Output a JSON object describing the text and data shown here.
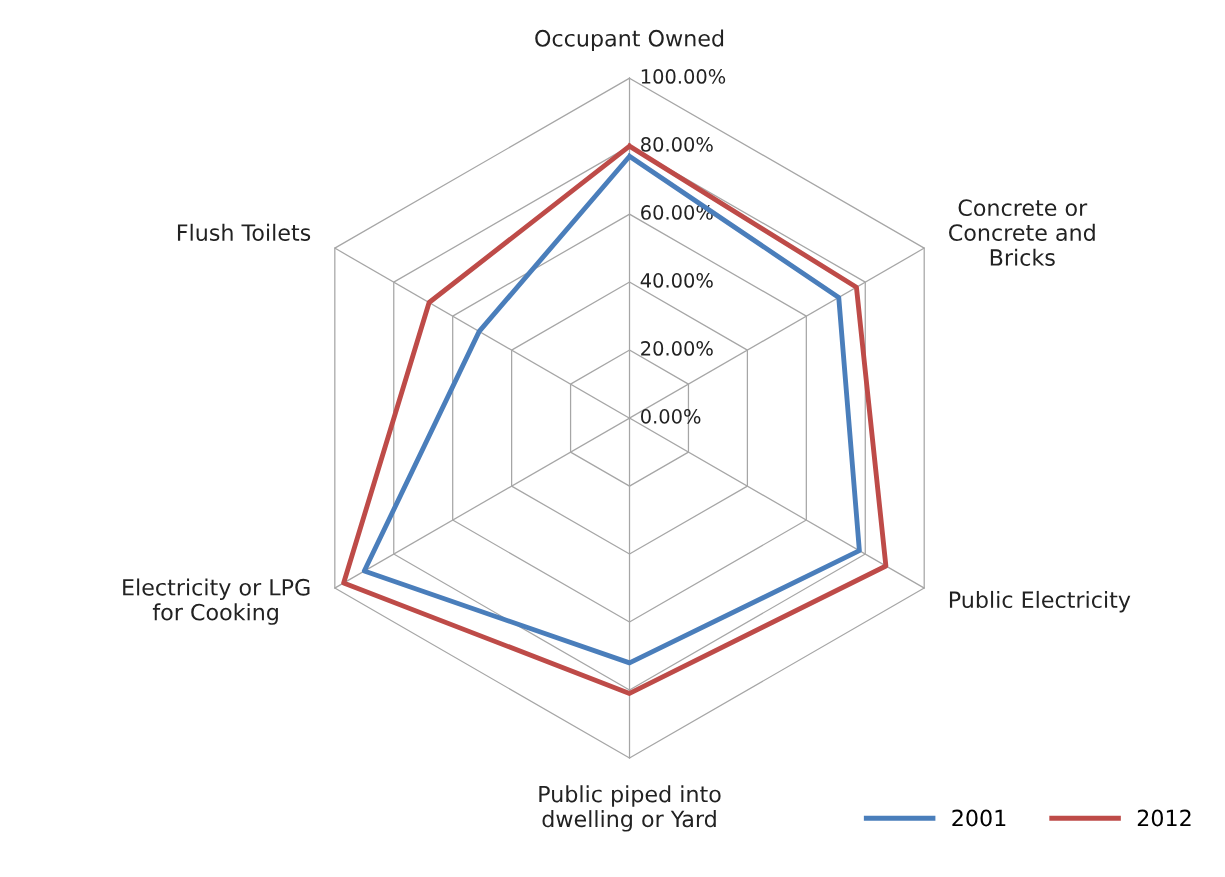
{
  "chart_data": {
    "type": "radar",
    "categories": [
      "Occupant Owned",
      "Concrete or\nConcrete and\nBricks",
      "Public Electricity",
      "Public piped into\ndwelling or Yard",
      "Electricity or LPG\nfor Cooking",
      "Flush Toilets"
    ],
    "series": [
      {
        "name": "2001",
        "color": "#4a7ebb",
        "values": [
          77,
          71,
          78,
          72,
          90,
          51
        ]
      },
      {
        "name": "2012",
        "color": "#be4b48",
        "values": [
          80,
          77,
          87,
          81,
          97,
          68
        ]
      }
    ],
    "ylim": [
      0,
      100
    ],
    "yticks": [
      {
        "value": 0,
        "label": "0.00%"
      },
      {
        "value": 20,
        "label": "20.00%"
      },
      {
        "value": 40,
        "label": "40.00%"
      },
      {
        "value": 60,
        "label": "60.00%"
      },
      {
        "value": 80,
        "label": "80.00%"
      },
      {
        "value": 100,
        "label": "100.00%"
      }
    ],
    "grid": true,
    "legend": "bottom right",
    "marker": "none",
    "line_style": "solid"
  }
}
